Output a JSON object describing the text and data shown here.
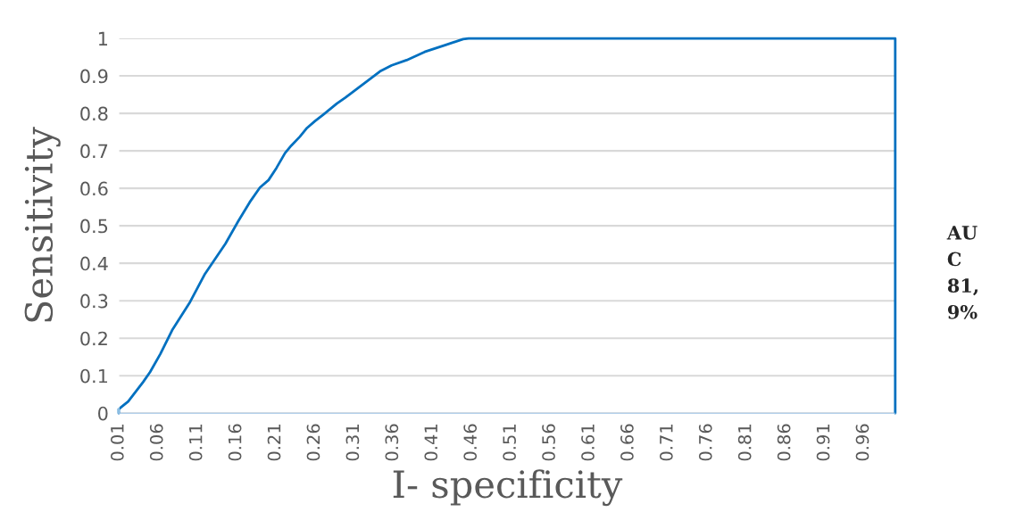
{
  "chart_data": {
    "type": "line",
    "xlabel": "I- specificity",
    "ylabel": "Sensitivity",
    "annotations": [
      "AU\nC\n81,\n9%"
    ],
    "series": [
      {
        "color": "#0070c0",
        "x": [
          0.01,
          0.01,
          0.022,
          0.041,
          0.05,
          0.063,
          0.078,
          0.101,
          0.12,
          0.146,
          0.162,
          0.177,
          0.19,
          0.201,
          0.211,
          0.222,
          0.23,
          0.241,
          0.25,
          0.26,
          0.271,
          0.288,
          0.299,
          0.328,
          0.343,
          0.358,
          0.377,
          0.4,
          0.426,
          0.449,
          0.456,
          1.0,
          1.0
        ],
        "values": [
          0,
          0.011,
          0.031,
          0.083,
          0.11,
          0.158,
          0.221,
          0.297,
          0.372,
          0.452,
          0.511,
          0.563,
          0.602,
          0.622,
          0.654,
          0.694,
          0.714,
          0.738,
          0.761,
          0.779,
          0.797,
          0.826,
          0.842,
          0.888,
          0.912,
          0.928,
          0.942,
          0.964,
          0.982,
          0.998,
          1,
          1,
          0
        ]
      }
    ],
    "xlim": [
      0.01,
      1.0
    ],
    "ylim": [
      0,
      1
    ],
    "xticks": [
      0.01,
      0.06,
      0.11,
      0.16,
      0.21,
      0.26,
      0.31,
      0.36,
      0.41,
      0.46,
      0.51,
      0.56,
      0.61,
      0.66,
      0.71,
      0.76,
      0.81,
      0.86,
      0.91,
      0.96
    ],
    "yticks": [
      0,
      0.1,
      0.2,
      0.3,
      0.4,
      0.5,
      0.6,
      0.7,
      0.8,
      0.9,
      1
    ],
    "grid": "y",
    "legend": false,
    "marker": "none",
    "line_style": "solid"
  }
}
